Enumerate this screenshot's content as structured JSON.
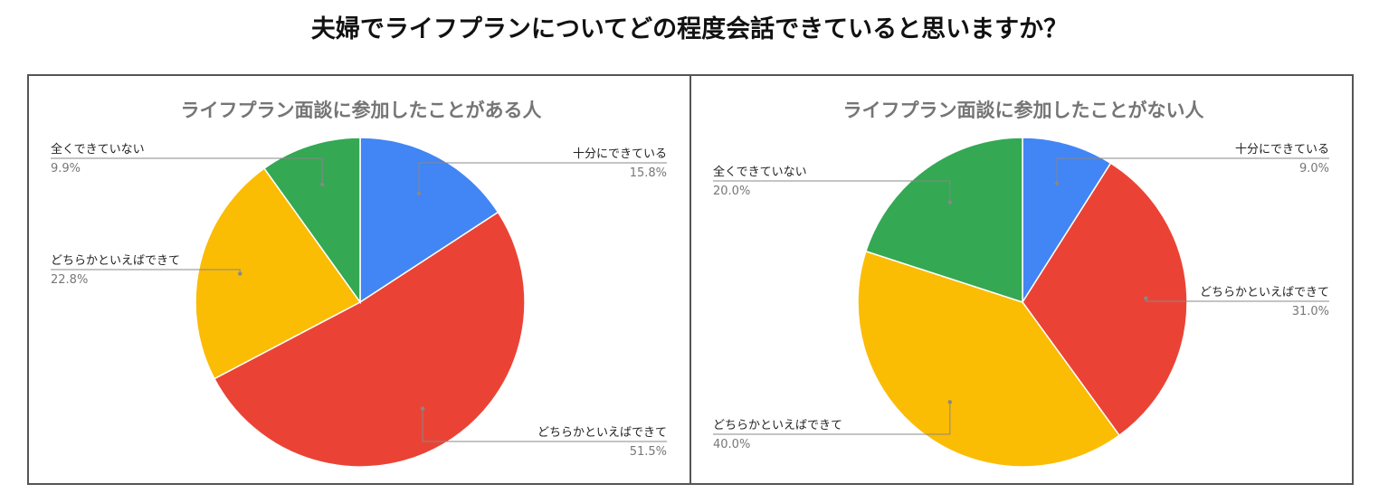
{
  "page": {
    "title": "夫婦でライフプランについてどの程度会話できていると思いますか？"
  },
  "chart_data": [
    {
      "type": "pie",
      "title": "ライフプラン面談に参加したことがある人",
      "categories": [
        "十分にできている",
        "どちらかといえばできて",
        "どちらかといえばできて",
        "全くできていない"
      ],
      "values": [
        15.8,
        51.5,
        22.8,
        9.9
      ],
      "value_labels": [
        "15.8%",
        "51.5%",
        "22.8%",
        "9.9%"
      ],
      "colors": [
        "#4285F4",
        "#EA4335",
        "#FBBC04",
        "#34A853"
      ]
    },
    {
      "type": "pie",
      "title": "ライフプラン面談に参加したことがない人",
      "categories": [
        "十分にできている",
        "どちらかといえばできて",
        "どちらかといえばできて",
        "全くできていない"
      ],
      "values": [
        9.0,
        31.0,
        40.0,
        20.0
      ],
      "value_labels": [
        "9.0%",
        "31.0%",
        "40.0%",
        "20.0%"
      ],
      "colors": [
        "#4285F4",
        "#EA4335",
        "#FBBC04",
        "#34A853"
      ]
    }
  ]
}
